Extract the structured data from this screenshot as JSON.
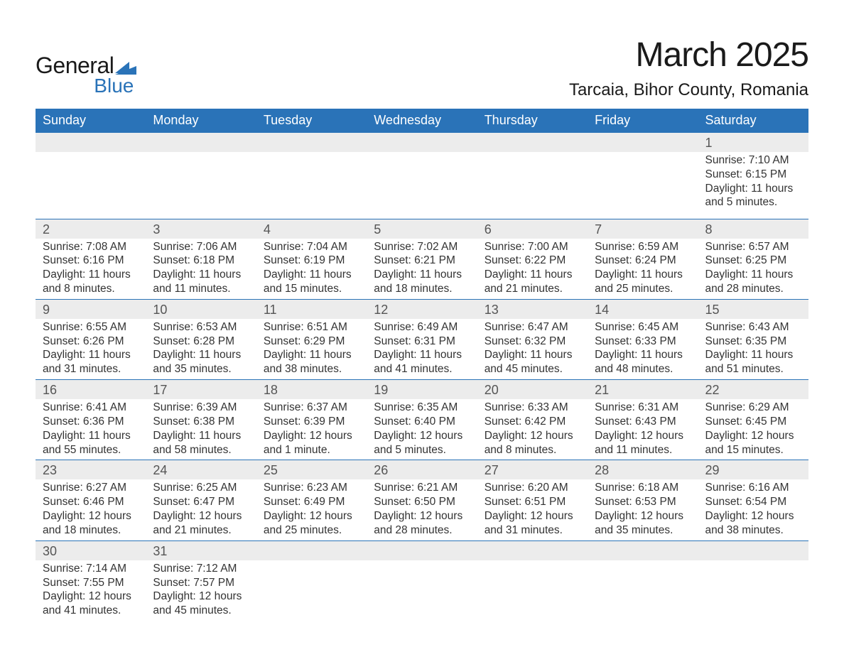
{
  "logo": {
    "text1": "General",
    "text2": "Blue",
    "icon_color": "#2a73b8"
  },
  "title": "March 2025",
  "location": "Tarcaia, Bihor County, Romania",
  "header_bg": "#2a73b8",
  "header_fg": "#ffffff",
  "daynum_bg": "#ececec",
  "divider_color": "#2a73b8",
  "columns": [
    "Sunday",
    "Monday",
    "Tuesday",
    "Wednesday",
    "Thursday",
    "Friday",
    "Saturday"
  ],
  "weeks": [
    {
      "nums": [
        "",
        "",
        "",
        "",
        "",
        "",
        "1"
      ],
      "cells": [
        "",
        "",
        "",
        "",
        "",
        "",
        "Sunrise: 7:10 AM\nSunset: 6:15 PM\nDaylight: 11 hours and 5 minutes."
      ],
      "tall": true
    },
    {
      "nums": [
        "2",
        "3",
        "4",
        "5",
        "6",
        "7",
        "8"
      ],
      "cells": [
        "Sunrise: 7:08 AM\nSunset: 6:16 PM\nDaylight: 11 hours and 8 minutes.",
        "Sunrise: 7:06 AM\nSunset: 6:18 PM\nDaylight: 11 hours and 11 minutes.",
        "Sunrise: 7:04 AM\nSunset: 6:19 PM\nDaylight: 11 hours and 15 minutes.",
        "Sunrise: 7:02 AM\nSunset: 6:21 PM\nDaylight: 11 hours and 18 minutes.",
        "Sunrise: 7:00 AM\nSunset: 6:22 PM\nDaylight: 11 hours and 21 minutes.",
        "Sunrise: 6:59 AM\nSunset: 6:24 PM\nDaylight: 11 hours and 25 minutes.",
        "Sunrise: 6:57 AM\nSunset: 6:25 PM\nDaylight: 11 hours and 28 minutes."
      ]
    },
    {
      "nums": [
        "9",
        "10",
        "11",
        "12",
        "13",
        "14",
        "15"
      ],
      "cells": [
        "Sunrise: 6:55 AM\nSunset: 6:26 PM\nDaylight: 11 hours and 31 minutes.",
        "Sunrise: 6:53 AM\nSunset: 6:28 PM\nDaylight: 11 hours and 35 minutes.",
        "Sunrise: 6:51 AM\nSunset: 6:29 PM\nDaylight: 11 hours and 38 minutes.",
        "Sunrise: 6:49 AM\nSunset: 6:31 PM\nDaylight: 11 hours and 41 minutes.",
        "Sunrise: 6:47 AM\nSunset: 6:32 PM\nDaylight: 11 hours and 45 minutes.",
        "Sunrise: 6:45 AM\nSunset: 6:33 PM\nDaylight: 11 hours and 48 minutes.",
        "Sunrise: 6:43 AM\nSunset: 6:35 PM\nDaylight: 11 hours and 51 minutes."
      ]
    },
    {
      "nums": [
        "16",
        "17",
        "18",
        "19",
        "20",
        "21",
        "22"
      ],
      "cells": [
        "Sunrise: 6:41 AM\nSunset: 6:36 PM\nDaylight: 11 hours and 55 minutes.",
        "Sunrise: 6:39 AM\nSunset: 6:38 PM\nDaylight: 11 hours and 58 minutes.",
        "Sunrise: 6:37 AM\nSunset: 6:39 PM\nDaylight: 12 hours and 1 minute.",
        "Sunrise: 6:35 AM\nSunset: 6:40 PM\nDaylight: 12 hours and 5 minutes.",
        "Sunrise: 6:33 AM\nSunset: 6:42 PM\nDaylight: 12 hours and 8 minutes.",
        "Sunrise: 6:31 AM\nSunset: 6:43 PM\nDaylight: 12 hours and 11 minutes.",
        "Sunrise: 6:29 AM\nSunset: 6:45 PM\nDaylight: 12 hours and 15 minutes."
      ]
    },
    {
      "nums": [
        "23",
        "24",
        "25",
        "26",
        "27",
        "28",
        "29"
      ],
      "cells": [
        "Sunrise: 6:27 AM\nSunset: 6:46 PM\nDaylight: 12 hours and 18 minutes.",
        "Sunrise: 6:25 AM\nSunset: 6:47 PM\nDaylight: 12 hours and 21 minutes.",
        "Sunrise: 6:23 AM\nSunset: 6:49 PM\nDaylight: 12 hours and 25 minutes.",
        "Sunrise: 6:21 AM\nSunset: 6:50 PM\nDaylight: 12 hours and 28 minutes.",
        "Sunrise: 6:20 AM\nSunset: 6:51 PM\nDaylight: 12 hours and 31 minutes.",
        "Sunrise: 6:18 AM\nSunset: 6:53 PM\nDaylight: 12 hours and 35 minutes.",
        "Sunrise: 6:16 AM\nSunset: 6:54 PM\nDaylight: 12 hours and 38 minutes."
      ]
    },
    {
      "nums": [
        "30",
        "31",
        "",
        "",
        "",
        "",
        ""
      ],
      "cells": [
        "Sunrise: 7:14 AM\nSunset: 7:55 PM\nDaylight: 12 hours and 41 minutes.",
        "Sunrise: 7:12 AM\nSunset: 7:57 PM\nDaylight: 12 hours and 45 minutes.",
        "",
        "",
        "",
        "",
        ""
      ]
    }
  ]
}
